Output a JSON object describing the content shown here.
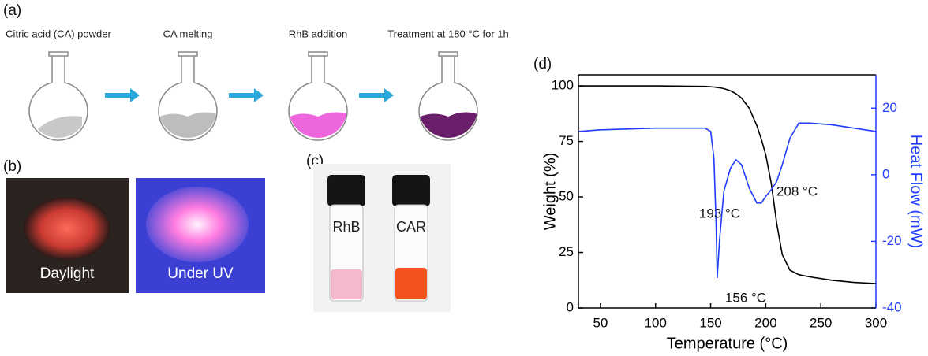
{
  "panels": {
    "a": {
      "label": "(a)",
      "steps": [
        "Citric acid (CA) powder",
        "CA melting",
        "RhB addition",
        "Treatment at 180 °C for 1h"
      ]
    },
    "b": {
      "label": "(b)",
      "captions": [
        "Daylight",
        "Under UV"
      ]
    },
    "c": {
      "label": "(c)",
      "vials": [
        "RhB",
        "CAR"
      ]
    }
  },
  "chart_data": {
    "type": "line",
    "panel_label": "(d)",
    "xlabel": "Temperature (°C)",
    "ylabel": "Weight (%)",
    "y2label": "Heat Flow (mW)",
    "x": [
      30,
      50,
      100,
      145,
      150,
      153,
      155,
      156,
      158,
      162,
      168,
      173,
      178,
      185,
      192,
      196,
      200,
      205,
      210,
      215,
      222,
      230,
      240,
      260,
      280,
      300
    ],
    "series": [
      {
        "name": "Weight",
        "color": "#000000",
        "values": [
          100,
          100,
          100,
          99.8,
          99.6,
          99.5,
          99.4,
          99.3,
          99.2,
          98.8,
          97.8,
          96.5,
          94.5,
          90,
          82,
          76,
          69,
          56,
          38,
          24,
          17,
          15,
          14,
          12.5,
          11.5,
          11
        ]
      },
      {
        "name": "Heat Flow",
        "color": "#1f3cff",
        "axis": "y2",
        "values": [
          13,
          13.5,
          14,
          14,
          13,
          5,
          -15,
          -31,
          -20,
          -5,
          2,
          4.5,
          3,
          -4,
          -8.5,
          -8.5,
          -6.5,
          -4.5,
          -2,
          3,
          11,
          15.5,
          15.5,
          15,
          14,
          13
        ]
      }
    ],
    "xlim": [
      30,
      300
    ],
    "xticks": [
      50,
      100,
      150,
      200,
      250,
      300
    ],
    "ylim": [
      0,
      105
    ],
    "yticks": [
      0,
      25,
      50,
      75,
      100
    ],
    "y2lim": [
      -40,
      30
    ],
    "y2ticks": [
      -40,
      -20,
      0,
      20
    ],
    "annotations": [
      "156 °C",
      "193 °C",
      "208 °C"
    ]
  }
}
